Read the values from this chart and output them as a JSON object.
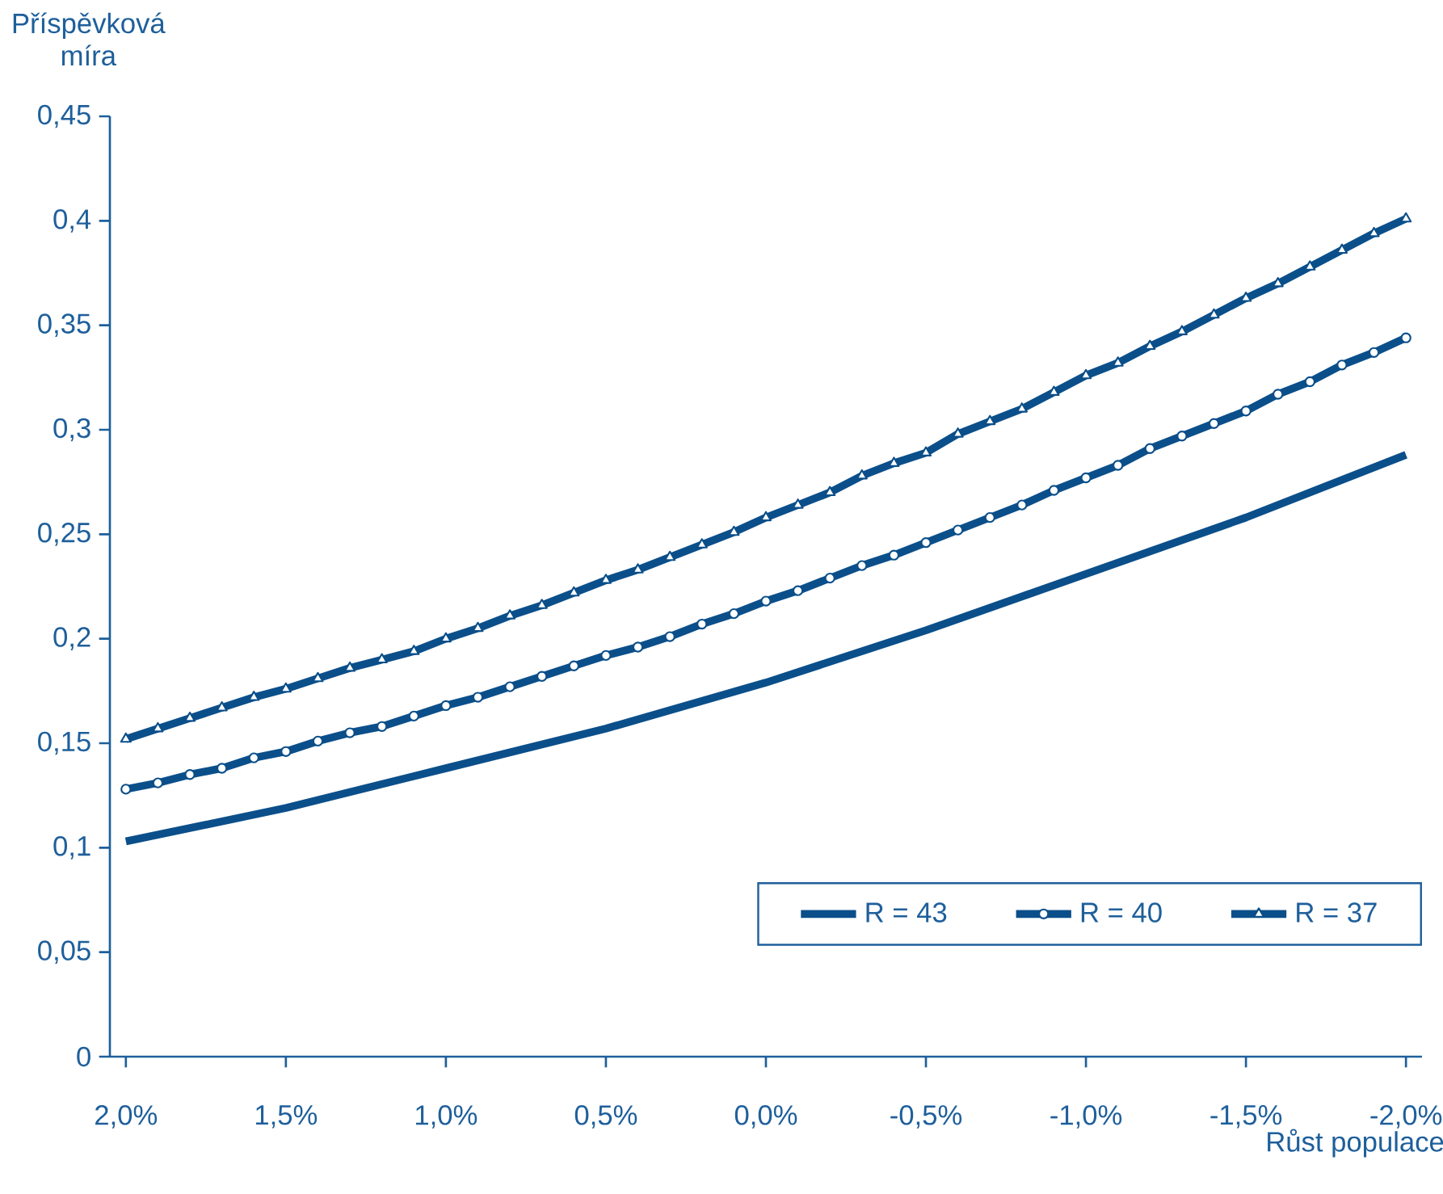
{
  "chart_data": {
    "type": "line",
    "ylabel": "Příspěvková míra",
    "xlabel": "Růst populace",
    "x": [
      2.0,
      1.9,
      1.8,
      1.7,
      1.6,
      1.5,
      1.4,
      1.3,
      1.2,
      1.1,
      1.0,
      0.9,
      0.8,
      0.7,
      0.6,
      0.5,
      0.4,
      0.3,
      0.2,
      0.1,
      0.0,
      -0.1,
      -0.2,
      -0.3,
      -0.4,
      -0.5,
      -0.6,
      -0.7,
      -0.8,
      -0.9,
      -1.0,
      -1.1,
      -1.2,
      -1.3,
      -1.4,
      -1.5,
      -1.6,
      -1.7,
      -1.8,
      -1.9,
      -2.0
    ],
    "series": [
      {
        "name": "R = 43",
        "color": "#0b4f8a",
        "marker": "none",
        "x": [
          2.0,
          1.5,
          1.0,
          0.5,
          0.0,
          -0.5,
          -1.0,
          -1.5,
          -2.0
        ],
        "values": [
          0.103,
          0.119,
          0.138,
          0.157,
          0.179,
          0.204,
          0.231,
          0.258,
          0.288
        ]
      },
      {
        "name": "R = 40",
        "color": "#0b4f8a",
        "marker": "circle",
        "values": [
          0.128,
          0.131,
          0.135,
          0.138,
          0.143,
          0.146,
          0.151,
          0.155,
          0.158,
          0.163,
          0.168,
          0.172,
          0.177,
          0.182,
          0.187,
          0.192,
          0.196,
          0.201,
          0.207,
          0.212,
          0.218,
          0.223,
          0.229,
          0.235,
          0.24,
          0.246,
          0.252,
          0.258,
          0.264,
          0.271,
          0.277,
          0.283,
          0.291,
          0.297,
          0.303,
          0.309,
          0.317,
          0.323,
          0.331,
          0.337,
          0.344
        ]
      },
      {
        "name": "R = 37",
        "color": "#0b4f8a",
        "marker": "triangle",
        "values": [
          0.152,
          0.157,
          0.162,
          0.167,
          0.172,
          0.176,
          0.181,
          0.186,
          0.19,
          0.194,
          0.2,
          0.205,
          0.211,
          0.216,
          0.222,
          0.228,
          0.233,
          0.239,
          0.245,
          0.251,
          0.258,
          0.264,
          0.27,
          0.278,
          0.284,
          0.289,
          0.298,
          0.304,
          0.31,
          0.318,
          0.326,
          0.332,
          0.34,
          0.347,
          0.355,
          0.363,
          0.37,
          0.378,
          0.386,
          0.394,
          0.401
        ]
      }
    ],
    "xlim": [
      2.05,
      -2.05
    ],
    "xticks": [
      {
        "value": 2.0,
        "label": "2,0%"
      },
      {
        "value": 1.5,
        "label": "1,5%"
      },
      {
        "value": 1.0,
        "label": "1,0%"
      },
      {
        "value": 0.5,
        "label": "0,5%"
      },
      {
        "value": 0.0,
        "label": "0,0%"
      },
      {
        "value": -0.5,
        "label": "-0,5%"
      },
      {
        "value": -1.0,
        "label": "-1,0%"
      },
      {
        "value": -1.5,
        "label": "-1,5%"
      },
      {
        "value": -2.0,
        "label": "-2,0%"
      }
    ],
    "ylim": [
      0,
      0.45
    ],
    "yticks": [
      0,
      {
        "value": 0.05,
        "label": "0,05"
      },
      {
        "value": 0.1,
        "label": "0,1"
      },
      {
        "value": 0.15,
        "label": "0,15"
      },
      {
        "value": 0.2,
        "label": "0,2"
      },
      {
        "value": 0.25,
        "label": "0,25"
      },
      {
        "value": 0.3,
        "label": "0,3"
      },
      {
        "value": 0.35,
        "label": "0,35"
      },
      {
        "value": 0.4,
        "label": "0,4"
      },
      {
        "value": 0.45,
        "label": "0,45"
      }
    ],
    "legend": "bottom right",
    "grid": false,
    "line_style": "solid"
  }
}
